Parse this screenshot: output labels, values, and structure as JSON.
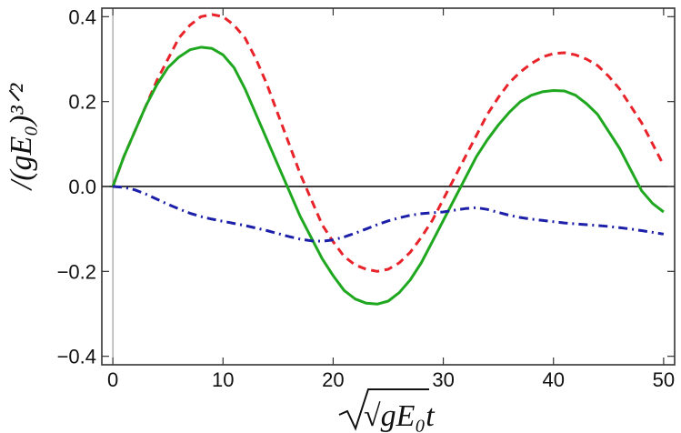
{
  "chart_data": {
    "type": "line",
    "title": "",
    "xlabel": "√gE₀t",
    "ylabel": "/(gE₀)³ᐟ²",
    "xlim": [
      -1,
      51
    ],
    "ylim": [
      -0.42,
      0.42
    ],
    "xticks": [
      0,
      10,
      20,
      30,
      40,
      50
    ],
    "xtick_labels": [
      "0",
      "10",
      "20",
      "30",
      "40",
      "50"
    ],
    "yticks": [
      -0.4,
      -0.2,
      0.0,
      0.2,
      0.4
    ],
    "ytick_labels": [
      "−0.4",
      "−0.2",
      "0.0",
      "0.2",
      "0.4"
    ],
    "grid": false,
    "series": [
      {
        "name": "red-dashed",
        "color": "#e8232a",
        "style": "dashed",
        "x": [
          0,
          1,
          2,
          3,
          4,
          5,
          6,
          7,
          8,
          9,
          10,
          11,
          12,
          13,
          14,
          15,
          16,
          17,
          18,
          19,
          20,
          21,
          22,
          23,
          24,
          25,
          26,
          27,
          28,
          29,
          30,
          31,
          32,
          33,
          34,
          35,
          36,
          37,
          38,
          39,
          40,
          41,
          42,
          43,
          44,
          45,
          46,
          47,
          48,
          49,
          50
        ],
        "values": [
          0.0,
          0.07,
          0.13,
          0.19,
          0.25,
          0.3,
          0.35,
          0.38,
          0.4,
          0.405,
          0.4,
          0.38,
          0.35,
          0.3,
          0.24,
          0.17,
          0.1,
          0.03,
          -0.03,
          -0.09,
          -0.13,
          -0.165,
          -0.185,
          -0.195,
          -0.2,
          -0.195,
          -0.18,
          -0.155,
          -0.12,
          -0.08,
          -0.03,
          0.02,
          0.07,
          0.12,
          0.17,
          0.21,
          0.245,
          0.27,
          0.29,
          0.305,
          0.313,
          0.315,
          0.31,
          0.3,
          0.285,
          0.26,
          0.23,
          0.19,
          0.15,
          0.1,
          0.05
        ]
      },
      {
        "name": "green-solid",
        "color": "#1fa81f",
        "style": "solid",
        "x": [
          0,
          1,
          2,
          3,
          4,
          5,
          6,
          7,
          8,
          9,
          10,
          11,
          12,
          13,
          14,
          15,
          16,
          17,
          18,
          19,
          20,
          21,
          22,
          23,
          24,
          25,
          26,
          27,
          28,
          29,
          30,
          31,
          32,
          33,
          34,
          35,
          36,
          37,
          38,
          39,
          40,
          41,
          42,
          43,
          44,
          45,
          46,
          47,
          48,
          49,
          50
        ],
        "values": [
          0.0,
          0.07,
          0.13,
          0.19,
          0.24,
          0.28,
          0.305,
          0.322,
          0.328,
          0.325,
          0.31,
          0.28,
          0.23,
          0.17,
          0.11,
          0.05,
          -0.01,
          -0.07,
          -0.12,
          -0.17,
          -0.21,
          -0.245,
          -0.265,
          -0.275,
          -0.277,
          -0.27,
          -0.25,
          -0.22,
          -0.18,
          -0.13,
          -0.08,
          -0.03,
          0.02,
          0.07,
          0.11,
          0.145,
          0.175,
          0.2,
          0.215,
          0.223,
          0.226,
          0.225,
          0.215,
          0.195,
          0.17,
          0.13,
          0.09,
          0.04,
          -0.01,
          -0.04,
          -0.06
        ]
      },
      {
        "name": "blue-dashdot",
        "color": "#1c1fa8",
        "style": "dashdot",
        "x": [
          0,
          1,
          2,
          3,
          4,
          5,
          6,
          7,
          8,
          9,
          10,
          11,
          12,
          13,
          14,
          15,
          16,
          17,
          18,
          19,
          20,
          21,
          22,
          23,
          24,
          25,
          26,
          27,
          28,
          29,
          30,
          31,
          32,
          33,
          34,
          35,
          36,
          37,
          38,
          39,
          40,
          41,
          42,
          43,
          44,
          45,
          46,
          47,
          48,
          49,
          50
        ],
        "values": [
          0.0,
          -0.002,
          -0.008,
          -0.018,
          -0.03,
          -0.042,
          -0.053,
          -0.063,
          -0.071,
          -0.077,
          -0.082,
          -0.087,
          -0.092,
          -0.098,
          -0.104,
          -0.111,
          -0.118,
          -0.124,
          -0.128,
          -0.129,
          -0.126,
          -0.119,
          -0.11,
          -0.1,
          -0.09,
          -0.081,
          -0.074,
          -0.068,
          -0.064,
          -0.062,
          -0.06,
          -0.056,
          -0.052,
          -0.05,
          -0.054,
          -0.061,
          -0.068,
          -0.073,
          -0.077,
          -0.08,
          -0.083,
          -0.086,
          -0.088,
          -0.09,
          -0.092,
          -0.094,
          -0.097,
          -0.1,
          -0.104,
          -0.108,
          -0.112
        ]
      }
    ]
  }
}
